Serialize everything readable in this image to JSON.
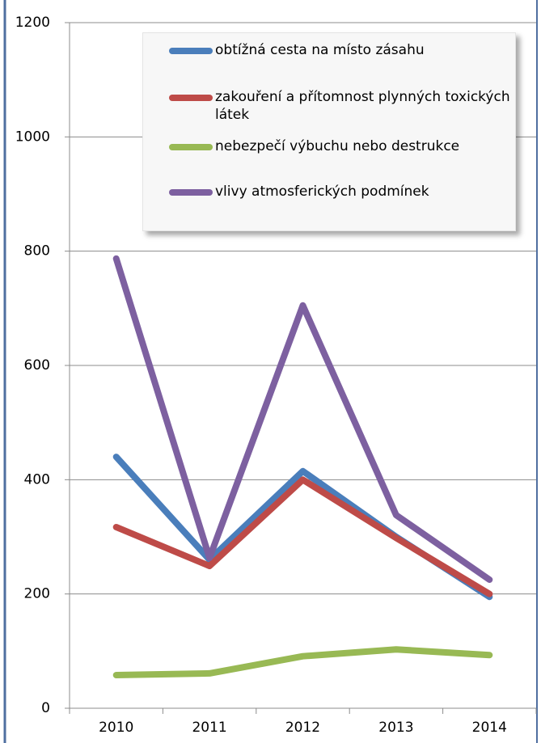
{
  "chart_data": {
    "type": "line",
    "categories": [
      "2010",
      "2011",
      "2012",
      "2013",
      "2014"
    ],
    "series": [
      {
        "name": "obtížná cesta na místo zásahu",
        "color": "#4a7ebb",
        "values": [
          440,
          260,
          415,
          300,
          195
        ]
      },
      {
        "name": "zakouření a přítomnost plynných toxických látek",
        "color": "#be4b48",
        "values": [
          317,
          249,
          400,
          298,
          200
        ]
      },
      {
        "name": "nebezpečí výbuchu nebo destrukce",
        "color": "#98b954",
        "values": [
          58,
          61,
          91,
          103,
          93
        ]
      },
      {
        "name": "vlivy atmosferických podmínek",
        "color": "#7d60a0",
        "values": [
          787,
          263,
          705,
          338,
          225
        ]
      }
    ],
    "ylim": [
      0,
      1200
    ],
    "yticks": [
      0,
      200,
      400,
      600,
      800,
      1000,
      1200
    ],
    "grid": true,
    "legend": "top-right"
  }
}
